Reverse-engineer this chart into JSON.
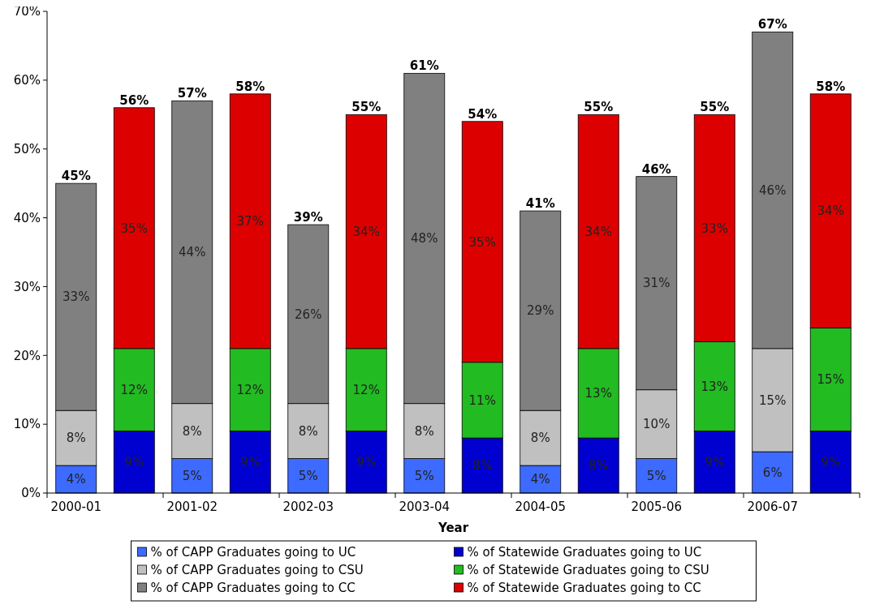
{
  "chart_data": {
    "type": "bar",
    "stacked": true,
    "xlabel": "Year",
    "categories": [
      "2000-01",
      null,
      "2001-02",
      null,
      "2002-03",
      null,
      "2003-04",
      null,
      "2004-05",
      null,
      "2005-06",
      null,
      "2006-07",
      null
    ],
    "ylim": [
      0,
      70
    ],
    "yticks": [
      {
        "value": 0,
        "label": "0%"
      },
      {
        "value": 10,
        "label": "10%"
      },
      {
        "value": 20,
        "label": "20%"
      },
      {
        "value": 30,
        "label": "30%"
      },
      {
        "value": 40,
        "label": "40%"
      },
      {
        "value": 50,
        "label": "50%"
      },
      {
        "value": 60,
        "label": "60%"
      },
      {
        "value": 70,
        "label": "70%"
      }
    ],
    "grid": false,
    "legend": "bottom",
    "series": [
      {
        "name": "% of CAPP Graduates going to UC",
        "color": "#3d6bff",
        "values": [
          4,
          null,
          5,
          null,
          5,
          null,
          5,
          null,
          4,
          null,
          5,
          null,
          6,
          null
        ],
        "value_labels": [
          "4%",
          null,
          "5%",
          null,
          "5%",
          null,
          "5%",
          null,
          "4%",
          null,
          "5%",
          null,
          "6%",
          null
        ]
      },
      {
        "name": "% of CAPP Graduates going to CSU",
        "color": "#c0c0c0",
        "values": [
          8,
          null,
          8,
          null,
          8,
          null,
          8,
          null,
          8,
          null,
          10,
          null,
          15,
          null
        ],
        "value_labels": [
          "8%",
          null,
          "8%",
          null,
          "8%",
          null,
          "8%",
          null,
          "8%",
          null,
          "10%",
          null,
          "15%",
          null
        ]
      },
      {
        "name": "% of CAPP Graduates going to CC",
        "color": "#808080",
        "values": [
          33,
          null,
          44,
          null,
          26,
          null,
          48,
          null,
          29,
          null,
          31,
          null,
          46,
          null
        ],
        "value_labels": [
          "33%",
          null,
          "44%",
          null,
          "26%",
          null,
          "48%",
          null,
          "29%",
          null,
          "31%",
          null,
          "46%",
          null
        ]
      },
      {
        "name": "% of Statewide Graduates going to UC",
        "color": "#0000d0",
        "values": [
          null,
          9,
          null,
          9,
          null,
          9,
          null,
          8,
          null,
          8,
          null,
          9,
          null,
          9
        ],
        "value_labels": [
          null,
          "9%",
          null,
          "9%",
          null,
          "9%",
          null,
          "8%",
          null,
          "8%",
          null,
          "9%",
          null,
          "9%"
        ]
      },
      {
        "name": "% of Statewide Graduates going to CSU",
        "color": "#22bb22",
        "values": [
          null,
          12,
          null,
          12,
          null,
          12,
          null,
          11,
          null,
          13,
          null,
          13,
          null,
          15
        ],
        "value_labels": [
          null,
          "12%",
          null,
          "12%",
          null,
          "12%",
          null,
          "11%",
          null,
          "13%",
          null,
          "13%",
          null,
          "15%"
        ]
      },
      {
        "name": "% of Statewide Graduates going to CC",
        "color": "#dd0000",
        "values": [
          null,
          35,
          null,
          37,
          null,
          34,
          null,
          35,
          null,
          34,
          null,
          33,
          null,
          34
        ],
        "value_labels": [
          null,
          "35%",
          null,
          "37%",
          null,
          "34%",
          null,
          "35%",
          null,
          "34%",
          null,
          "33%",
          null,
          "34%"
        ]
      }
    ],
    "totals": [
      "45%",
      "56%",
      "57%",
      "58%",
      "39%",
      "55%",
      "61%",
      "54%",
      "41%",
      "55%",
      "46%",
      "55%",
      "67%",
      "58%"
    ]
  }
}
